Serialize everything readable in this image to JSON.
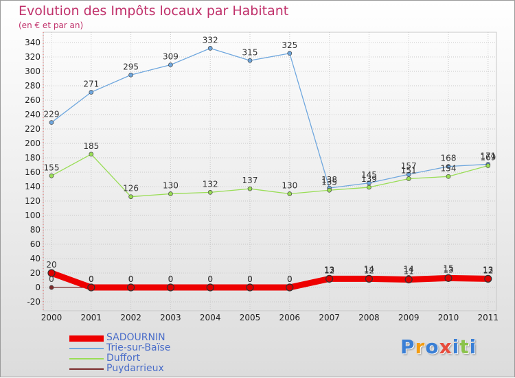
{
  "chart_data": {
    "type": "line",
    "title": "Evolution des Impôts locaux par Habitant",
    "subtitle": "(en € et par an)",
    "x": [
      "2000",
      "2001",
      "2002",
      "2003",
      "2004",
      "2005",
      "2006",
      "2007",
      "2008",
      "2009",
      "2010",
      "2011"
    ],
    "ylim": [
      -20,
      340
    ],
    "yticks": [
      -20,
      0,
      20,
      40,
      60,
      80,
      100,
      120,
      140,
      160,
      180,
      200,
      220,
      240,
      260,
      280,
      300,
      320,
      340
    ],
    "grid": true,
    "legend_position": "bottom-left",
    "series": [
      {
        "name": "SADOURNIN",
        "color": "#ee0000",
        "width": "thick",
        "values": [
          20,
          0,
          0,
          0,
          0,
          0,
          0,
          12,
          12,
          11,
          13,
          12
        ],
        "labels": [
          "20",
          "0",
          "0",
          "0",
          "0",
          "0",
          "0",
          "12",
          "12",
          "11",
          "13",
          "12"
        ]
      },
      {
        "name": "Trie-sur-Baïse",
        "color": "#6fa7de",
        "width": "thin",
        "values": [
          229,
          271,
          295,
          309,
          332,
          315,
          325,
          138,
          145,
          157,
          168,
          171
        ],
        "labels": [
          "229",
          "271",
          "295",
          "309",
          "332",
          "315",
          "325",
          "138",
          "145",
          "157",
          "168",
          "171"
        ]
      },
      {
        "name": "Duffort",
        "color": "#99dd55",
        "width": "thin",
        "values": [
          155,
          185,
          126,
          130,
          132,
          137,
          130,
          135,
          139,
          151,
          154,
          169
        ],
        "labels": [
          "155",
          "185",
          "126",
          "130",
          "132",
          "137",
          "130",
          "135",
          "139",
          "151",
          "154",
          "169"
        ]
      },
      {
        "name": "Puydarrieux",
        "color": "#7a2a2a",
        "width": "thin",
        "values": [
          0,
          0,
          0,
          0,
          0,
          0,
          0,
          13,
          14,
          14,
          15,
          13
        ],
        "labels": [
          "0",
          "0",
          "0",
          "0",
          "0",
          "0",
          "0",
          "13",
          "14",
          "14",
          "15",
          "13"
        ]
      }
    ]
  },
  "logo": {
    "letters": [
      "P",
      "r",
      "o",
      "x",
      "i",
      "t",
      "i"
    ],
    "colors": [
      "#3a7fd5",
      "#f39c12",
      "#3a7fd5",
      "#e74c3c",
      "#3a7fd5",
      "#8bc34a",
      "#3a7fd5"
    ]
  }
}
